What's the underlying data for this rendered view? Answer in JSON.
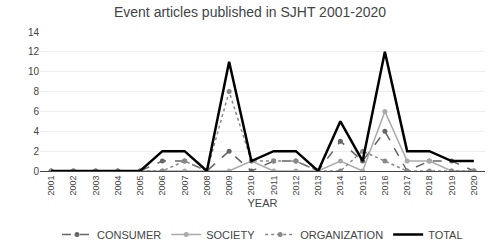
{
  "chart_data": {
    "type": "line",
    "title": "Event articles published in SJHT 2001-2020",
    "xlabel": "YEAR",
    "x": [
      2001,
      2002,
      2003,
      2004,
      2005,
      2006,
      2007,
      2008,
      2009,
      2010,
      2011,
      2012,
      2013,
      2014,
      2015,
      2016,
      2017,
      2018,
      2019,
      2020
    ],
    "series": [
      {
        "name": "CONSUMER",
        "color": "#666666",
        "line_style": "dashed",
        "marker": "circle",
        "values": [
          0,
          0,
          0,
          0,
          0,
          1,
          1,
          0,
          2,
          0,
          1,
          1,
          0,
          3,
          1,
          4,
          0,
          1,
          1,
          0
        ]
      },
      {
        "name": "SOCIETY",
        "color": "#aaaaaa",
        "line_style": "solid",
        "marker": "circle",
        "values": [
          0,
          0,
          0,
          0,
          0,
          0,
          0,
          0,
          0,
          1,
          0,
          0,
          0,
          1,
          0,
          6,
          1,
          1,
          0,
          0
        ]
      },
      {
        "name": "ORGANIZATION",
        "color": "#888888",
        "line_style": "dotted",
        "marker": "circle",
        "values": [
          0,
          0,
          0,
          0,
          0,
          0,
          1,
          0,
          8,
          1,
          1,
          1,
          0,
          0,
          2,
          1,
          0,
          0,
          0,
          0
        ]
      },
      {
        "name": "TOTAL",
        "color": "#000000",
        "line_style": "solid",
        "marker": "none",
        "values": [
          0,
          0,
          0,
          0,
          0,
          2,
          2,
          0,
          11,
          1,
          2,
          2,
          0,
          5,
          1,
          12,
          2,
          2,
          1,
          1
        ]
      }
    ],
    "xlim": [
      2000.5,
      2020.5
    ],
    "xticks": [
      2001,
      2002,
      2003,
      2004,
      2005,
      2006,
      2007,
      2008,
      2009,
      2010,
      2011,
      2012,
      2013,
      2014,
      2015,
      2016,
      2017,
      2018,
      2019,
      2020
    ],
    "ylim": [
      0,
      14
    ],
    "yticks": [
      0,
      2,
      4,
      6,
      8,
      10,
      12,
      14
    ],
    "grid": "y",
    "legend": "bottom"
  }
}
